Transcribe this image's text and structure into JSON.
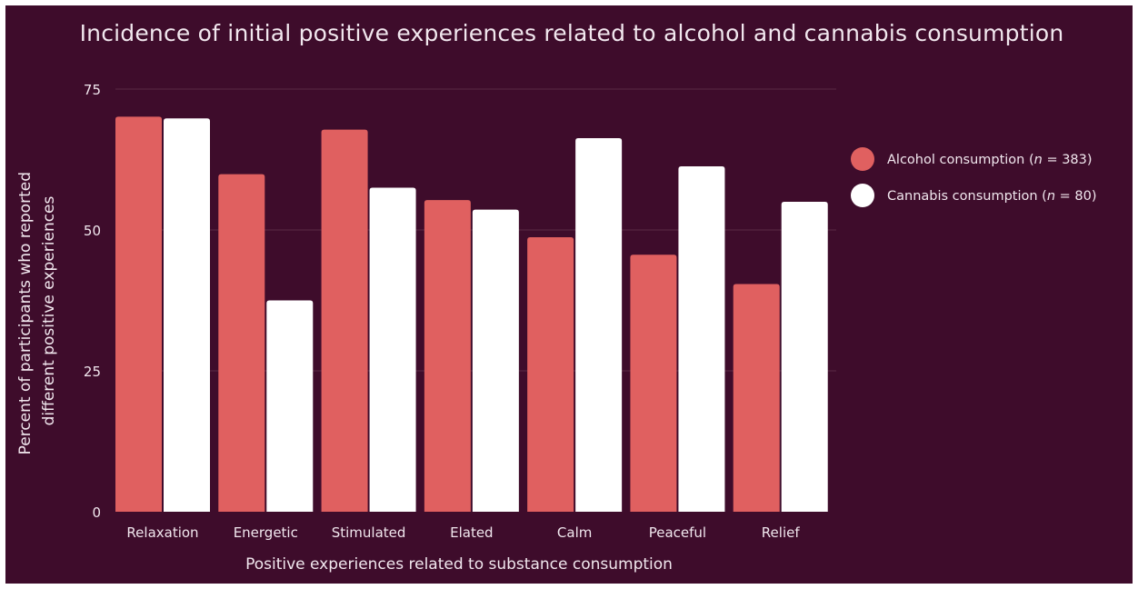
{
  "chart_data": {
    "type": "bar",
    "title": "Incidence of initial positive experiences related to alcohol and cannabis consumption",
    "xlabel": "Positive experiences related to substance consumption",
    "ylabel_lines": [
      "Percent of participants who reported",
      "different positive experiences"
    ],
    "categories": [
      "Relaxation",
      "Energetic",
      "Stimulated",
      "Elated",
      "Calm",
      "Peaceful",
      "Relief"
    ],
    "ylim": [
      0,
      75
    ],
    "yticks": [
      0,
      25,
      50,
      75
    ],
    "grid": true,
    "legend_position": "right",
    "series": [
      {
        "name": "Alcohol consumption",
        "legend_prefix": "Alcohol consumption  (",
        "legend_n": "n",
        "legend_suffix": " = 383)",
        "color": "#e06060",
        "values": [
          70.1,
          59.9,
          67.8,
          55.3,
          48.7,
          45.6,
          40.4
        ]
      },
      {
        "name": "Cannabis consumption",
        "legend_prefix": "Cannabis consumption (",
        "legend_n": "n",
        "legend_suffix": " = 80)",
        "color": "#ffffff",
        "values": [
          69.8,
          37.5,
          57.5,
          53.6,
          66.3,
          61.3,
          55.0
        ]
      }
    ]
  },
  "colors": {
    "background": "#3e0c2b",
    "text": "#f1e7ee",
    "gridline": "#5a2a45"
  }
}
